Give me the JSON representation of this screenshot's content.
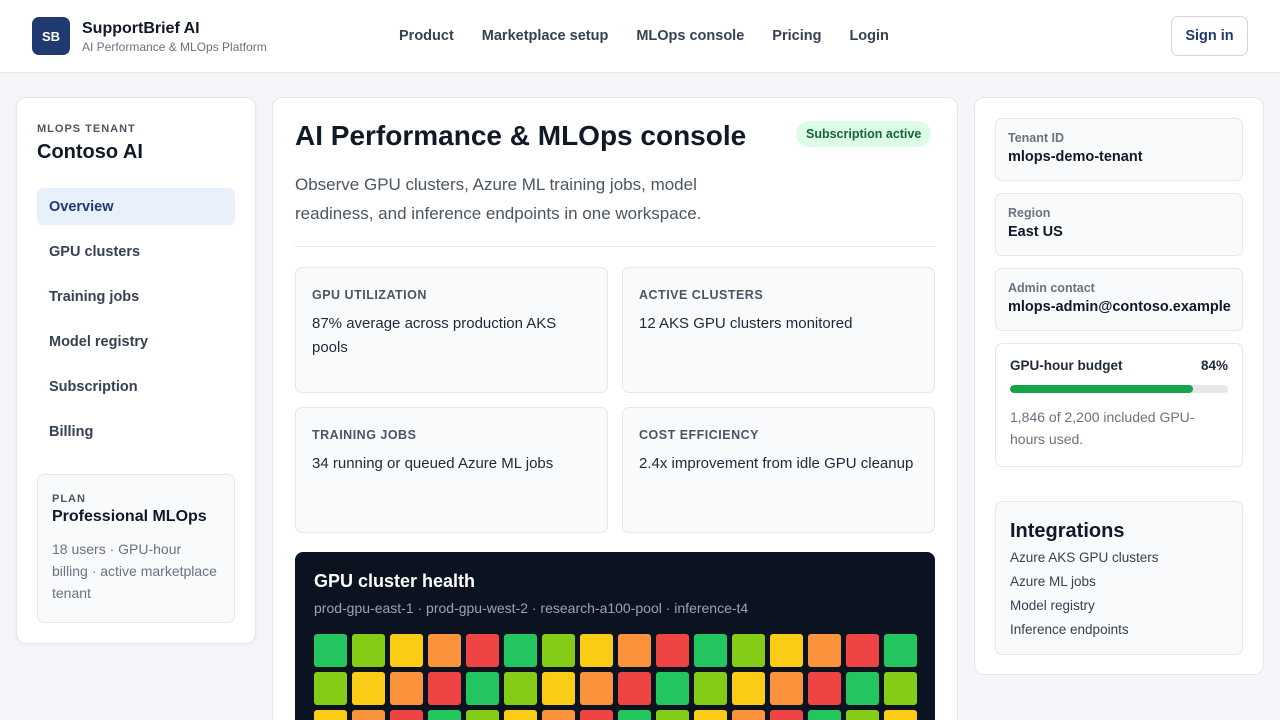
{
  "header": {
    "logo_text": "SB",
    "brand_name": "SupportBrief AI",
    "brand_tagline": "AI Performance & MLOps Platform",
    "nav": [
      "Product",
      "Marketplace setup",
      "MLOps console",
      "Pricing",
      "Login"
    ],
    "signin_label": "Sign in"
  },
  "sidebar": {
    "eyebrow": "MLOPS TENANT",
    "tenant_name": "Contoso AI",
    "items": [
      {
        "label": "Overview",
        "active": true
      },
      {
        "label": "GPU clusters"
      },
      {
        "label": "Training jobs"
      },
      {
        "label": "Model registry"
      },
      {
        "label": "Subscription"
      },
      {
        "label": "Billing"
      }
    ],
    "plan": {
      "eyebrow": "PLAN",
      "name": "Professional MLOps",
      "desc": "18 users · GPU-hour billing · active marketplace tenant"
    }
  },
  "main": {
    "title": "AI Performance & MLOps console",
    "badge": "Subscription active",
    "desc": "Observe GPU clusters, Azure ML training jobs, model readiness, and inference endpoints in one workspace.",
    "metrics": [
      {
        "label": "GPU UTILIZATION",
        "value": "87% average across production AKS pools"
      },
      {
        "label": "ACTIVE CLUSTERS",
        "value": "12 AKS GPU clusters monitored"
      },
      {
        "label": "TRAINING JOBS",
        "value": "34 running or queued Azure ML jobs"
      },
      {
        "label": "COST EFFICIENCY",
        "value": "2.4x improvement from idle GPU cleanup"
      }
    ],
    "health": {
      "title": "GPU cluster health",
      "subtitle": "prod-gpu-east-1 · prod-gpu-west-2 · research-a100-pool · inference-t4",
      "colors": {
        "g": "#22c55e",
        "l": "#84cc16",
        "y": "#facc15",
        "o": "#fb923c",
        "r": "#ef4444"
      },
      "rows": [
        [
          "g",
          "l",
          "y",
          "o",
          "r",
          "g",
          "l",
          "y",
          "o",
          "r",
          "g",
          "l",
          "y",
          "o",
          "r",
          "g"
        ],
        [
          "l",
          "y",
          "o",
          "r",
          "g",
          "l",
          "y",
          "o",
          "r",
          "g",
          "l",
          "y",
          "o",
          "r",
          "g",
          "l"
        ],
        [
          "y",
          "o",
          "r",
          "g",
          "l",
          "y",
          "o",
          "r",
          "g",
          "l",
          "y",
          "o",
          "r",
          "g",
          "l",
          "y"
        ]
      ]
    }
  },
  "right": {
    "tenant": {
      "label": "Tenant ID",
      "value": "mlops-demo-tenant"
    },
    "region": {
      "label": "Region",
      "value": "East US"
    },
    "admin": {
      "label": "Admin contact",
      "value": "mlops-admin@contoso.example"
    },
    "budget": {
      "label": "GPU-hour budget",
      "percent_label": "84%",
      "percent": 0.84,
      "desc": "1,846 of 2,200 included GPU-hours used."
    },
    "integrations": {
      "title": "Integrations",
      "items": [
        "Azure AKS GPU clusters",
        "Azure ML jobs",
        "Model registry",
        "Inference endpoints"
      ]
    }
  }
}
